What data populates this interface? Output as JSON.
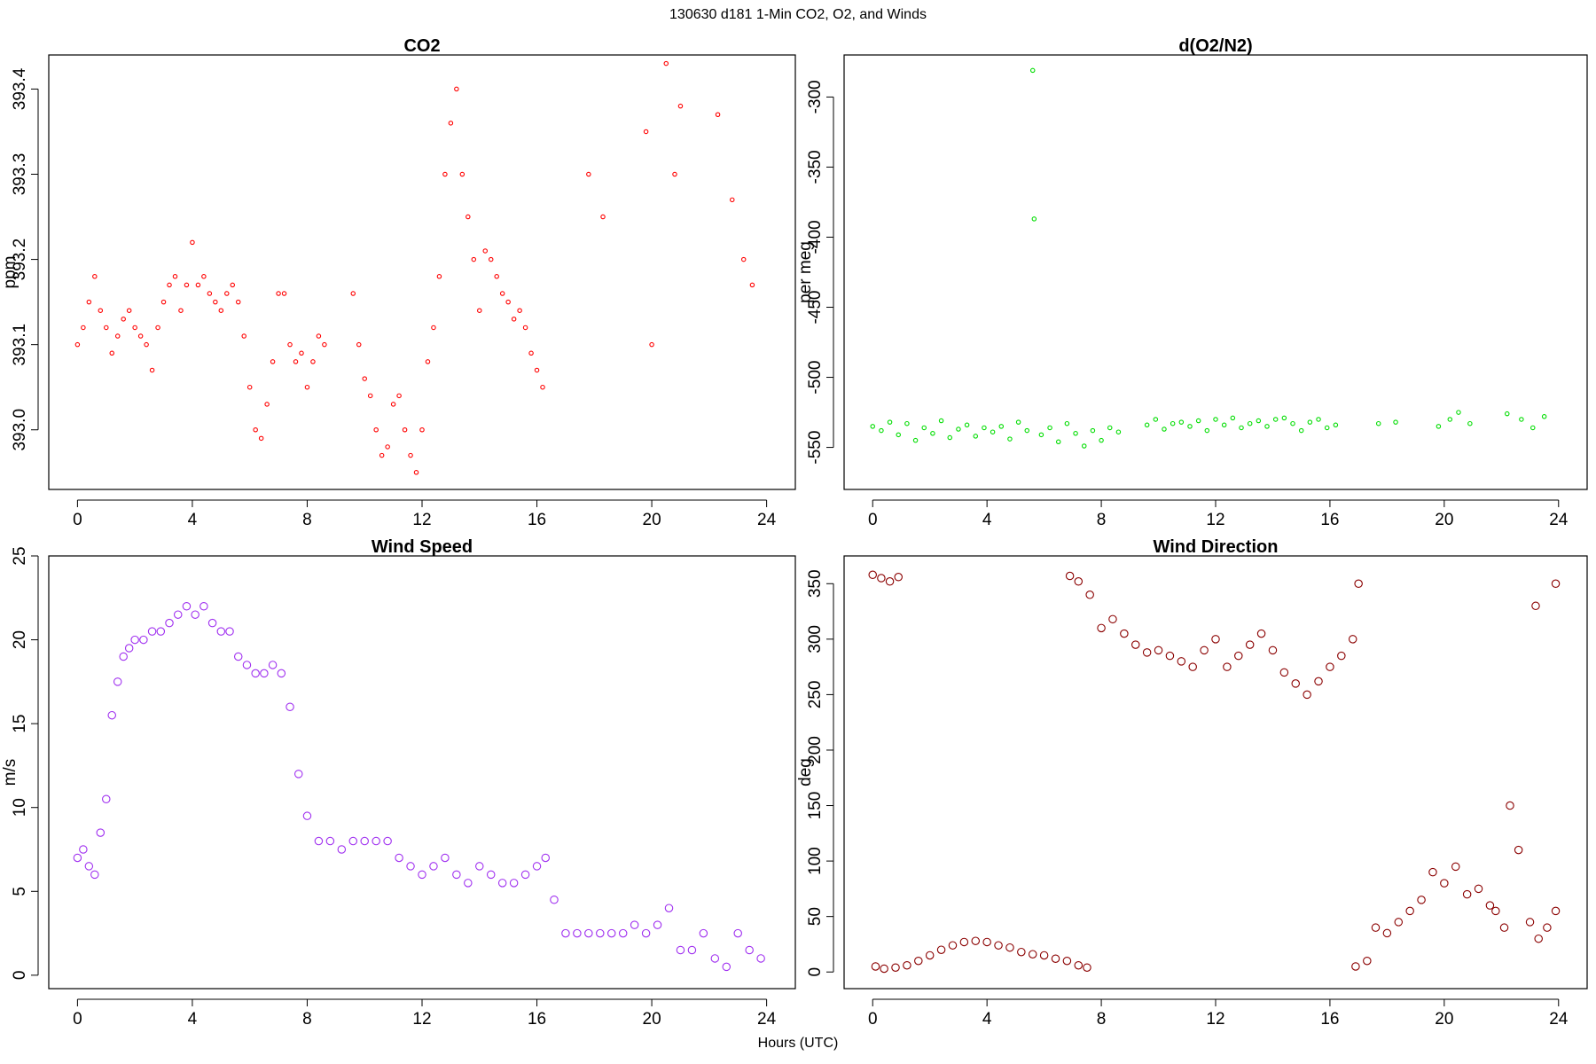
{
  "page": {
    "title": "130630   d181   1-Min CO2, O2, and Winds",
    "xlabel": "Hours (UTC)"
  },
  "chart_data": [
    {
      "type": "scatter",
      "title": "CO2",
      "xlabel": "",
      "ylabel": "ppm",
      "xlim": [
        -1,
        25
      ],
      "ylim": [
        392.93,
        393.44
      ],
      "xticks": [
        0,
        4,
        8,
        12,
        16,
        20,
        24
      ],
      "yticks": [
        393.0,
        393.1,
        393.2,
        393.3,
        393.4
      ],
      "ytick_labels": [
        "393.0",
        "393.1",
        "393.2",
        "393.3",
        "393.4"
      ],
      "grid": false,
      "color": "#ff0000",
      "series": [
        {
          "x": [
            0.0,
            0.2,
            0.4,
            0.6,
            0.8,
            1.0,
            1.2,
            1.4,
            1.6,
            1.8,
            2.0,
            2.2,
            2.4,
            2.6,
            2.8,
            3.0,
            3.2,
            3.4,
            3.6,
            3.8,
            4.0,
            4.2,
            4.4,
            4.6,
            4.8,
            5.0,
            5.2,
            5.4,
            5.6,
            5.8,
            6.0,
            6.2,
            6.4,
            6.6,
            6.8,
            7.0,
            7.2,
            7.4,
            7.6,
            7.8,
            8.0,
            8.2,
            8.4,
            8.6,
            9.6,
            9.8,
            10.0,
            10.2,
            10.4,
            10.6,
            10.8,
            11.0,
            11.2,
            11.4,
            11.6,
            11.8,
            12.0,
            12.2,
            12.4,
            12.6,
            12.8,
            13.0,
            13.2,
            13.4,
            13.6,
            13.8,
            14.0,
            14.2,
            14.4,
            14.6,
            14.8,
            15.0,
            15.2,
            15.4,
            15.6,
            15.8,
            16.0,
            16.2,
            17.8,
            18.3,
            19.8,
            20.0,
            20.5,
            20.8,
            21.0,
            22.3,
            22.8,
            23.2,
            23.5
          ],
          "y": [
            393.1,
            393.12,
            393.15,
            393.18,
            393.14,
            393.12,
            393.09,
            393.11,
            393.13,
            393.14,
            393.12,
            393.11,
            393.1,
            393.07,
            393.12,
            393.15,
            393.17,
            393.18,
            393.14,
            393.17,
            393.22,
            393.17,
            393.18,
            393.16,
            393.15,
            393.14,
            393.16,
            393.17,
            393.15,
            393.11,
            393.05,
            393.0,
            392.99,
            393.03,
            393.08,
            393.16,
            393.16,
            393.1,
            393.08,
            393.09,
            393.05,
            393.08,
            393.11,
            393.1,
            393.16,
            393.1,
            393.06,
            393.04,
            393.0,
            392.97,
            392.98,
            393.03,
            393.04,
            393.0,
            392.97,
            392.95,
            393.0,
            393.08,
            393.12,
            393.18,
            393.3,
            393.36,
            393.4,
            393.3,
            393.25,
            393.2,
            393.14,
            393.21,
            393.2,
            393.18,
            393.16,
            393.15,
            393.13,
            393.14,
            393.12,
            393.09,
            393.07,
            393.05,
            393.3,
            393.25,
            393.35,
            393.1,
            393.43,
            393.3,
            393.38,
            393.37,
            393.27,
            393.2,
            393.17
          ]
        }
      ]
    },
    {
      "type": "scatter",
      "title": "d(O2/N2)",
      "xlabel": "",
      "ylabel": "per meg",
      "xlim": [
        -1,
        25
      ],
      "ylim": [
        -580,
        -270
      ],
      "xticks": [
        0,
        4,
        8,
        12,
        16,
        20,
        24
      ],
      "yticks": [
        -550,
        -500,
        -450,
        -400,
        -350,
        -300
      ],
      "ytick_labels": [
        "-550",
        "-500",
        "-450",
        "-400",
        "-350",
        "-300"
      ],
      "grid": false,
      "color": "#00dd00",
      "series": [
        {
          "x": [
            0.0,
            0.3,
            0.6,
            0.9,
            1.2,
            1.5,
            1.8,
            2.1,
            2.4,
            2.7,
            3.0,
            3.3,
            3.6,
            3.9,
            4.2,
            4.5,
            4.8,
            5.1,
            5.4,
            5.6,
            5.65,
            5.9,
            6.2,
            6.5,
            6.8,
            7.1,
            7.4,
            7.7,
            8.0,
            8.3,
            8.6,
            9.6,
            9.9,
            10.2,
            10.5,
            10.8,
            11.1,
            11.4,
            11.7,
            12.0,
            12.3,
            12.6,
            12.9,
            13.2,
            13.5,
            13.8,
            14.1,
            14.4,
            14.7,
            15.0,
            15.3,
            15.6,
            15.9,
            16.2,
            17.7,
            18.3,
            19.8,
            20.2,
            20.5,
            20.9,
            22.2,
            22.7,
            23.1,
            23.5
          ],
          "y": [
            -535,
            -538,
            -532,
            -541,
            -533,
            -545,
            -536,
            -540,
            -531,
            -543,
            -537,
            -534,
            -542,
            -536,
            -539,
            -535,
            -544,
            -532,
            -538,
            -281,
            -387,
            -541,
            -536,
            -546,
            -533,
            -540,
            -549,
            -538,
            -545,
            -536,
            -539,
            -534,
            -530,
            -537,
            -533,
            -532,
            -535,
            -531,
            -538,
            -530,
            -534,
            -529,
            -536,
            -533,
            -531,
            -535,
            -530,
            -529,
            -533,
            -538,
            -532,
            -530,
            -536,
            -534,
            -533,
            -532,
            -535,
            -530,
            -525,
            -533,
            -526,
            -530,
            -536,
            -528
          ]
        }
      ]
    },
    {
      "type": "scatter",
      "title": "Wind Speed",
      "xlabel": "",
      "ylabel": "m/s",
      "xlim": [
        -1,
        25
      ],
      "ylim": [
        -0.8,
        25
      ],
      "xticks": [
        0,
        4,
        8,
        12,
        16,
        20,
        24
      ],
      "yticks": [
        0,
        5,
        10,
        15,
        20,
        25
      ],
      "ytick_labels": [
        "0",
        "5",
        "10",
        "15",
        "20",
        "25"
      ],
      "grid": false,
      "color": "#a030f0",
      "series": [
        {
          "x": [
            0.0,
            0.2,
            0.4,
            0.6,
            0.8,
            1.0,
            1.2,
            1.4,
            1.6,
            1.8,
            2.0,
            2.3,
            2.6,
            2.9,
            3.2,
            3.5,
            3.8,
            4.1,
            4.4,
            4.7,
            5.0,
            5.3,
            5.6,
            5.9,
            6.2,
            6.5,
            6.8,
            7.1,
            7.4,
            7.7,
            8.0,
            8.4,
            8.8,
            9.2,
            9.6,
            10.0,
            10.4,
            10.8,
            11.2,
            11.6,
            12.0,
            12.4,
            12.8,
            13.2,
            13.6,
            14.0,
            14.4,
            14.8,
            15.2,
            15.6,
            16.0,
            16.3,
            16.6,
            17.0,
            17.4,
            17.8,
            18.2,
            18.6,
            19.0,
            19.4,
            19.8,
            20.2,
            20.6,
            21.0,
            21.4,
            21.8,
            22.2,
            22.6,
            23.0,
            23.4,
            23.8
          ],
          "y": [
            7.0,
            7.5,
            6.5,
            6.0,
            8.5,
            10.5,
            15.5,
            17.5,
            19.0,
            19.5,
            20.0,
            20.0,
            20.5,
            20.5,
            21.0,
            21.5,
            22.0,
            21.5,
            22.0,
            21.0,
            20.5,
            20.5,
            19.0,
            18.5,
            18.0,
            18.0,
            18.5,
            18.0,
            16.0,
            12.0,
            9.5,
            8.0,
            8.0,
            7.5,
            8.0,
            8.0,
            8.0,
            8.0,
            7.0,
            6.5,
            6.0,
            6.5,
            7.0,
            6.0,
            5.5,
            6.5,
            6.0,
            5.5,
            5.5,
            6.0,
            6.5,
            7.0,
            4.5,
            2.5,
            2.5,
            2.5,
            2.5,
            2.5,
            2.5,
            3.0,
            2.5,
            3.0,
            4.0,
            1.5,
            1.5,
            2.5,
            1.0,
            0.5,
            2.5,
            1.5,
            1.0
          ]
        }
      ]
    },
    {
      "type": "scatter",
      "title": "Wind Direction",
      "xlabel": "",
      "ylabel": "deg",
      "xlim": [
        -1,
        25
      ],
      "ylim": [
        -15,
        375
      ],
      "xticks": [
        0,
        4,
        8,
        12,
        16,
        20,
        24
      ],
      "yticks": [
        0,
        50,
        100,
        150,
        200,
        250,
        300,
        350
      ],
      "ytick_labels": [
        "0",
        "50",
        "100",
        "150",
        "200",
        "250",
        "300",
        "350"
      ],
      "grid": false,
      "color": "#8b0000",
      "series": [
        {
          "x": [
            0.0,
            0.3,
            0.6,
            0.9,
            0.1,
            0.4,
            0.8,
            1.2,
            1.6,
            2.0,
            2.4,
            2.8,
            3.2,
            3.6,
            4.0,
            4.4,
            4.8,
            5.2,
            5.6,
            6.0,
            6.4,
            6.8,
            7.2,
            7.5,
            6.9,
            7.2,
            7.6,
            8.0,
            8.4,
            8.8,
            9.2,
            9.6,
            10.0,
            10.4,
            10.8,
            11.2,
            11.6,
            12.0,
            12.4,
            12.8,
            13.2,
            13.6,
            14.0,
            14.4,
            14.8,
            15.2,
            15.6,
            16.0,
            16.4,
            16.8,
            17.0,
            16.9,
            17.3,
            17.6,
            18.0,
            18.4,
            18.8,
            19.2,
            19.6,
            20.0,
            20.4,
            20.8,
            21.2,
            21.6,
            21.8,
            22.1,
            22.3,
            22.6,
            23.0,
            23.3,
            23.6,
            23.9,
            23.2,
            23.9
          ],
          "y": [
            358,
            355,
            352,
            356,
            5,
            3,
            4,
            6,
            10,
            15,
            20,
            24,
            27,
            28,
            27,
            24,
            22,
            18,
            16,
            15,
            12,
            10,
            6,
            4,
            357,
            352,
            340,
            310,
            318,
            305,
            295,
            288,
            290,
            285,
            280,
            275,
            290,
            300,
            275,
            285,
            295,
            305,
            290,
            270,
            260,
            250,
            262,
            275,
            285,
            300,
            350,
            5,
            10,
            40,
            35,
            45,
            55,
            65,
            90,
            80,
            95,
            70,
            75,
            60,
            55,
            40,
            150,
            110,
            45,
            30,
            40,
            55,
            330,
            350
          ]
        }
      ]
    }
  ]
}
